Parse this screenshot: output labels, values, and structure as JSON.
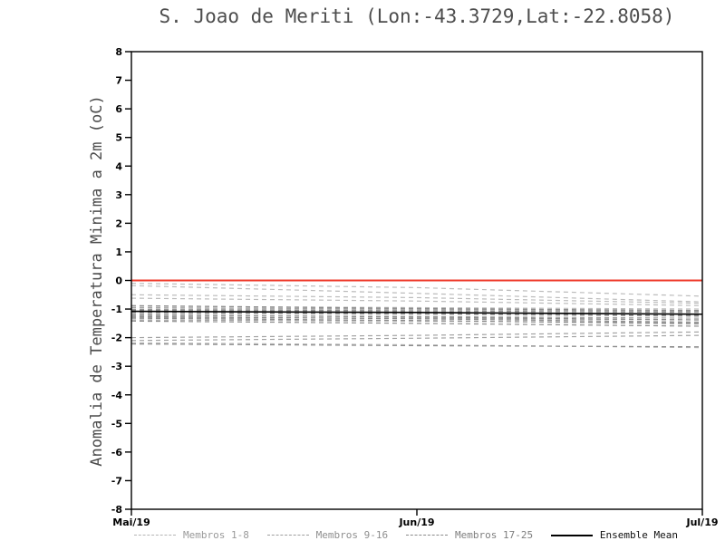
{
  "chart_data": {
    "type": "line",
    "title": "S. Joao de Meriti (Lon:-43.3729,Lat:-22.8058)",
    "ylabel": "Anomalia de Temperatura Minima a 2m (oC)",
    "xlabel": "",
    "ylim": [
      -8,
      8
    ],
    "ytick_step": 1,
    "grid": false,
    "legend_position": "bottom",
    "x_positions": [
      0,
      0.5,
      1
    ],
    "x_ticks": [
      {
        "pos": 0,
        "label": "Mai/19"
      },
      {
        "pos": 0.5,
        "label": "Jun/19"
      },
      {
        "pos": 1,
        "label": "Jul/19"
      }
    ],
    "reference_line": {
      "y": 0,
      "color": "#ef3b2c",
      "style": "solid"
    },
    "groups": [
      {
        "name": "Membros 1-8",
        "color": "#bcbcbc",
        "style": "dashed",
        "members": [
          [
            -0.1,
            -0.25,
            -0.55
          ],
          [
            -0.18,
            -0.45,
            -0.75
          ],
          [
            -0.5,
            -0.6,
            -0.8
          ],
          [
            -0.62,
            -0.72,
            -0.88
          ],
          [
            -0.9,
            -0.95,
            -1.0
          ],
          [
            -1.0,
            -1.02,
            -1.08
          ],
          [
            -1.12,
            -1.12,
            -1.18
          ],
          [
            -2.18,
            -2.25,
            -2.35
          ]
        ]
      },
      {
        "name": "Membros 9-16",
        "color": "#a2a2a2",
        "style": "dashed",
        "members": [
          [
            -0.95,
            -1.0,
            -1.08
          ],
          [
            -1.05,
            -1.1,
            -1.18
          ],
          [
            -1.15,
            -1.18,
            -1.25
          ],
          [
            -1.22,
            -1.26,
            -1.32
          ],
          [
            -1.3,
            -1.32,
            -1.38
          ],
          [
            -1.38,
            -1.42,
            -1.48
          ],
          [
            -2.0,
            -1.92,
            -1.8
          ],
          [
            -2.1,
            -2.02,
            -1.92
          ]
        ]
      },
      {
        "name": "Membros 17-25",
        "color": "#8c8c8c",
        "style": "dashed",
        "members": [
          [
            -0.88,
            -0.98,
            -1.05
          ],
          [
            -1.02,
            -1.06,
            -1.12
          ],
          [
            -1.1,
            -1.16,
            -1.22
          ],
          [
            -1.2,
            -1.28,
            -1.38
          ],
          [
            -1.26,
            -1.34,
            -1.46
          ],
          [
            -1.32,
            -1.4,
            -1.52
          ],
          [
            -1.42,
            -1.5,
            -1.6
          ],
          [
            -1.06,
            -1.14,
            -1.24
          ],
          [
            -2.22,
            -2.28,
            -2.32
          ]
        ]
      }
    ],
    "ensemble_mean": {
      "name": "Ensemble Mean",
      "color": "#000000",
      "style": "solid",
      "values": [
        -1.08,
        -1.12,
        -1.18
      ]
    }
  },
  "axes": {
    "y_ticks": [
      "8",
      "7",
      "6",
      "5",
      "4",
      "3",
      "2",
      "1",
      "0",
      "-1",
      "-2",
      "-3",
      "-4",
      "-5",
      "-6",
      "-7",
      "-8"
    ]
  },
  "legend": {
    "items": [
      {
        "label": "Membros 1-8",
        "color": "#b5b5b5",
        "style": "dashed",
        "label_color": "#9a9a9a"
      },
      {
        "label": "Membros 9-16",
        "color": "#9e9e9e",
        "style": "dashed",
        "label_color": "#8f8f8f"
      },
      {
        "label": "Membros 17-25",
        "color": "#8a8a8a",
        "style": "dashed",
        "label_color": "#7f7f7f"
      },
      {
        "label": "Ensemble Mean",
        "color": "#000000",
        "style": "solid",
        "label_color": "#111111"
      }
    ]
  }
}
